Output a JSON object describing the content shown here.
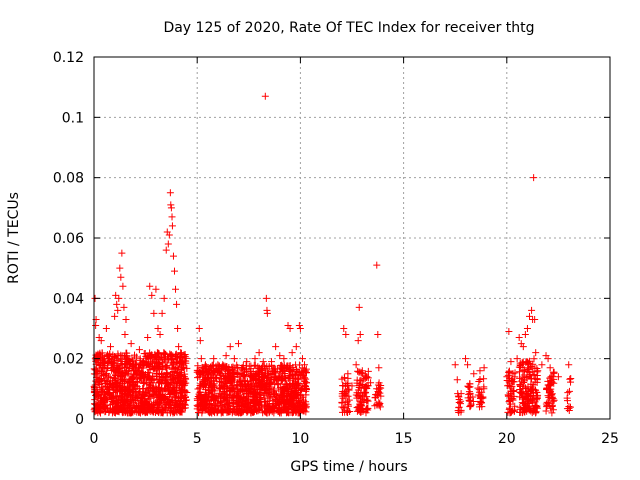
{
  "chart_data": {
    "type": "scatter",
    "title": "Day 125 of 2020, Rate Of TEC Index for receiver thtg",
    "xlabel": "GPS time / hours",
    "ylabel": "ROTI / TECUs",
    "xlim": [
      0,
      25
    ],
    "ylim": [
      0,
      0.12
    ],
    "x_ticks": [
      0,
      5,
      10,
      15,
      20,
      25
    ],
    "y_ticks": [
      0,
      0.02,
      0.04,
      0.06,
      0.08,
      0.1,
      0.12
    ],
    "x_tick_labels": [
      "0",
      "5",
      "10",
      "15",
      "20",
      "25"
    ],
    "y_tick_labels": [
      "0",
      "0.02",
      "0.04",
      "0.06",
      "0.08",
      "0.1",
      "0.12"
    ],
    "grid": true,
    "legend": "none",
    "marker": "plus",
    "color": "#ff0000",
    "series": [
      {
        "name": "ROTI",
        "points": [
          [
            0.05,
            0.04
          ],
          [
            0.08,
            0.031
          ],
          [
            0.1,
            0.033
          ],
          [
            0.15,
            0.021
          ],
          [
            0.2,
            0.012
          ],
          [
            0.25,
            0.027
          ],
          [
            0.3,
            0.018
          ],
          [
            0.35,
            0.026
          ],
          [
            0.4,
            0.009
          ],
          [
            0.5,
            0.02
          ],
          [
            0.6,
            0.03
          ],
          [
            0.7,
            0.014
          ],
          [
            0.8,
            0.024
          ],
          [
            0.9,
            0.011
          ],
          [
            1.0,
            0.034
          ],
          [
            1.05,
            0.041
          ],
          [
            1.1,
            0.038
          ],
          [
            1.15,
            0.036
          ],
          [
            1.2,
            0.04
          ],
          [
            1.25,
            0.05
          ],
          [
            1.3,
            0.047
          ],
          [
            1.35,
            0.055
          ],
          [
            1.4,
            0.044
          ],
          [
            1.45,
            0.037
          ],
          [
            1.5,
            0.028
          ],
          [
            1.55,
            0.033
          ],
          [
            1.6,
            0.021
          ],
          [
            1.7,
            0.019
          ],
          [
            1.8,
            0.025
          ],
          [
            2.0,
            0.018
          ],
          [
            2.2,
            0.023
          ],
          [
            2.4,
            0.019
          ],
          [
            2.6,
            0.027
          ],
          [
            2.7,
            0.044
          ],
          [
            2.8,
            0.041
          ],
          [
            2.9,
            0.035
          ],
          [
            3.0,
            0.043
          ],
          [
            3.1,
            0.03
          ],
          [
            3.2,
            0.028
          ],
          [
            3.3,
            0.035
          ],
          [
            3.4,
            0.04
          ],
          [
            3.5,
            0.056
          ],
          [
            3.55,
            0.062
          ],
          [
            3.6,
            0.058
          ],
          [
            3.65,
            0.061
          ],
          [
            3.7,
            0.075
          ],
          [
            3.72,
            0.071
          ],
          [
            3.75,
            0.07
          ],
          [
            3.78,
            0.067
          ],
          [
            3.8,
            0.064
          ],
          [
            3.85,
            0.054
          ],
          [
            3.9,
            0.049
          ],
          [
            3.95,
            0.043
          ],
          [
            4.0,
            0.038
          ],
          [
            4.05,
            0.03
          ],
          [
            4.1,
            0.024
          ],
          [
            4.2,
            0.022
          ],
          [
            4.3,
            0.018
          ],
          [
            5.1,
            0.03
          ],
          [
            5.15,
            0.026
          ],
          [
            5.2,
            0.02
          ],
          [
            5.4,
            0.018
          ],
          [
            5.6,
            0.016
          ],
          [
            5.8,
            0.02
          ],
          [
            6.0,
            0.018
          ],
          [
            6.2,
            0.015
          ],
          [
            6.4,
            0.021
          ],
          [
            6.6,
            0.024
          ],
          [
            6.8,
            0.02
          ],
          [
            7.0,
            0.025
          ],
          [
            7.2,
            0.017
          ],
          [
            7.4,
            0.019
          ],
          [
            7.6,
            0.015
          ],
          [
            7.8,
            0.02
          ],
          [
            8.0,
            0.022
          ],
          [
            8.2,
            0.019
          ],
          [
            8.3,
            0.107
          ],
          [
            8.35,
            0.04
          ],
          [
            8.38,
            0.036
          ],
          [
            8.4,
            0.035
          ],
          [
            8.6,
            0.019
          ],
          [
            8.8,
            0.024
          ],
          [
            9.0,
            0.021
          ],
          [
            9.2,
            0.02
          ],
          [
            9.4,
            0.031
          ],
          [
            9.5,
            0.03
          ],
          [
            9.6,
            0.022
          ],
          [
            9.8,
            0.024
          ],
          [
            9.95,
            0.031
          ],
          [
            10.0,
            0.03
          ],
          [
            10.1,
            0.02
          ],
          [
            10.2,
            0.018
          ],
          [
            12.1,
            0.03
          ],
          [
            12.2,
            0.028
          ],
          [
            12.3,
            0.015
          ],
          [
            12.5,
            0.011
          ],
          [
            12.7,
            0.018
          ],
          [
            12.8,
            0.026
          ],
          [
            12.85,
            0.037
          ],
          [
            12.9,
            0.028
          ],
          [
            13.0,
            0.016
          ],
          [
            13.2,
            0.014
          ],
          [
            13.4,
            0.012
          ],
          [
            13.7,
            0.051
          ],
          [
            13.75,
            0.028
          ],
          [
            13.8,
            0.017
          ],
          [
            17.5,
            0.018
          ],
          [
            17.6,
            0.013
          ],
          [
            18.0,
            0.02
          ],
          [
            18.1,
            0.018
          ],
          [
            18.4,
            0.015
          ],
          [
            18.7,
            0.016
          ],
          [
            18.9,
            0.017
          ],
          [
            20.1,
            0.029
          ],
          [
            20.2,
            0.019
          ],
          [
            20.3,
            0.015
          ],
          [
            20.5,
            0.02
          ],
          [
            20.6,
            0.027
          ],
          [
            20.7,
            0.025
          ],
          [
            20.8,
            0.024
          ],
          [
            20.9,
            0.028
          ],
          [
            21.0,
            0.03
          ],
          [
            21.1,
            0.034
          ],
          [
            21.2,
            0.036
          ],
          [
            21.25,
            0.033
          ],
          [
            21.3,
            0.08
          ],
          [
            21.35,
            0.033
          ],
          [
            21.4,
            0.022
          ],
          [
            21.5,
            0.016
          ],
          [
            21.7,
            0.018
          ],
          [
            21.9,
            0.021
          ],
          [
            22.0,
            0.02
          ],
          [
            22.1,
            0.017
          ],
          [
            22.2,
            0.012
          ],
          [
            22.5,
            0.014
          ],
          [
            23.0,
            0.018
          ]
        ]
      }
    ],
    "dense_clusters": [
      {
        "x_range": [
          0.0,
          4.5
        ],
        "y_range": [
          0.002,
          0.022
        ],
        "count": 1100
      },
      {
        "x_range": [
          5.0,
          10.3
        ],
        "y_range": [
          0.002,
          0.018
        ],
        "count": 1100
      },
      {
        "x_range": [
          12.0,
          12.4
        ],
        "y_range": [
          0.002,
          0.014
        ],
        "count": 40
      },
      {
        "x_range": [
          12.7,
          13.3
        ],
        "y_range": [
          0.002,
          0.016
        ],
        "count": 80
      },
      {
        "x_range": [
          13.6,
          13.9
        ],
        "y_range": [
          0.004,
          0.012
        ],
        "count": 25
      },
      {
        "x_range": [
          17.6,
          17.8
        ],
        "y_range": [
          0.002,
          0.009
        ],
        "count": 15
      },
      {
        "x_range": [
          18.1,
          18.4
        ],
        "y_range": [
          0.004,
          0.012
        ],
        "count": 20
      },
      {
        "x_range": [
          18.6,
          18.9
        ],
        "y_range": [
          0.004,
          0.014
        ],
        "count": 25
      },
      {
        "x_range": [
          20.0,
          20.4
        ],
        "y_range": [
          0.002,
          0.016
        ],
        "count": 50
      },
      {
        "x_range": [
          20.6,
          21.5
        ],
        "y_range": [
          0.002,
          0.02
        ],
        "count": 160
      },
      {
        "x_range": [
          21.9,
          22.3
        ],
        "y_range": [
          0.002,
          0.016
        ],
        "count": 50
      },
      {
        "x_range": [
          22.9,
          23.1
        ],
        "y_range": [
          0.002,
          0.014
        ],
        "count": 12
      }
    ]
  }
}
